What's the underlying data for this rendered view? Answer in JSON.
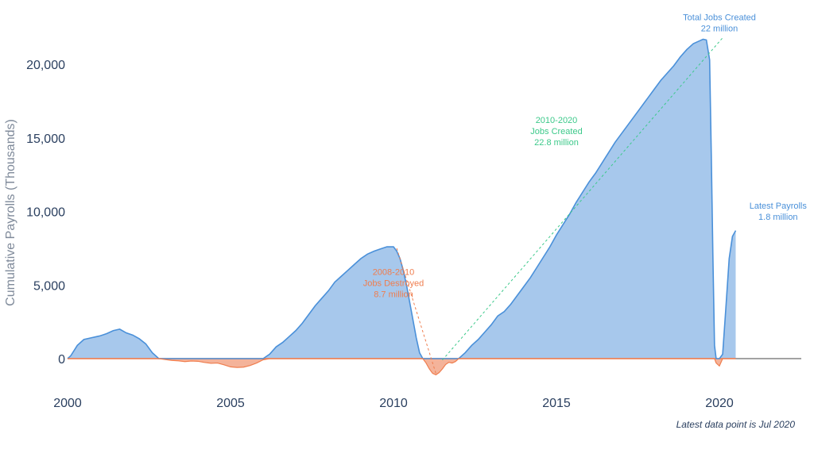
{
  "chart_data": {
    "type": "area",
    "ylabel": "Cumulative Payrolls (Thousands)",
    "xlim": [
      2000,
      2022.5
    ],
    "ylim": [
      -1400,
      22500
    ],
    "x_ticks": [
      "2000",
      "2005",
      "2010",
      "2015",
      "2020"
    ],
    "y_ticks": [
      "0",
      "5,000",
      "10,000",
      "15,000",
      "20,000"
    ],
    "y_tick_values": [
      0,
      5000,
      10000,
      15000,
      20000
    ],
    "x_tick_values": [
      2000,
      2005,
      2010,
      2015,
      2020
    ],
    "colors": {
      "positive_fill": "#a7c8ec",
      "positive_line": "#4a90d9",
      "negative_fill": "#f4b39a",
      "negative_line": "#ef7d4e",
      "green_annotation": "#3cc98a",
      "zero_line": "#444444"
    },
    "series": [
      {
        "points": [
          [
            2000.0,
            0
          ],
          [
            2000.1,
            200
          ],
          [
            2000.3,
            900
          ],
          [
            2000.5,
            1300
          ],
          [
            2000.7,
            1400
          ],
          [
            2000.9,
            1500
          ],
          [
            2001.0,
            1550
          ],
          [
            2001.2,
            1700
          ],
          [
            2001.4,
            1900
          ],
          [
            2001.6,
            2000
          ],
          [
            2001.8,
            1750
          ],
          [
            2002.0,
            1600
          ],
          [
            2002.2,
            1350
          ],
          [
            2002.4,
            1000
          ],
          [
            2002.6,
            400
          ],
          [
            2002.8,
            0
          ],
          [
            2003.0,
            -60
          ],
          [
            2003.2,
            -120
          ],
          [
            2003.4,
            -150
          ],
          [
            2003.6,
            -200
          ],
          [
            2003.8,
            -160
          ],
          [
            2004.0,
            -180
          ],
          [
            2004.2,
            -260
          ],
          [
            2004.4,
            -320
          ],
          [
            2004.6,
            -300
          ],
          [
            2004.8,
            -420
          ],
          [
            2005.0,
            -560
          ],
          [
            2005.2,
            -600
          ],
          [
            2005.4,
            -580
          ],
          [
            2005.6,
            -470
          ],
          [
            2005.8,
            -300
          ],
          [
            2006.0,
            -80
          ],
          [
            2006.2,
            300
          ],
          [
            2006.4,
            800
          ],
          [
            2006.6,
            1100
          ],
          [
            2006.8,
            1500
          ],
          [
            2007.0,
            1900
          ],
          [
            2007.2,
            2400
          ],
          [
            2007.4,
            3000
          ],
          [
            2007.6,
            3600
          ],
          [
            2007.8,
            4100
          ],
          [
            2008.0,
            4600
          ],
          [
            2008.2,
            5200
          ],
          [
            2008.4,
            5600
          ],
          [
            2008.6,
            6000
          ],
          [
            2008.8,
            6400
          ],
          [
            2009.0,
            6800
          ],
          [
            2009.2,
            7100
          ],
          [
            2009.4,
            7300
          ],
          [
            2009.6,
            7450
          ],
          [
            2009.8,
            7600
          ],
          [
            2010.0,
            7600
          ],
          [
            2010.1,
            7300
          ],
          [
            2010.2,
            6800
          ],
          [
            2010.3,
            6000
          ],
          [
            2010.4,
            5000
          ],
          [
            2010.5,
            3800
          ],
          [
            2010.6,
            2600
          ],
          [
            2010.7,
            1400
          ],
          [
            2010.8,
            400
          ],
          [
            2010.9,
            0
          ],
          [
            2011.0,
            -300
          ],
          [
            2011.1,
            -700
          ],
          [
            2011.2,
            -1000
          ],
          [
            2011.3,
            -1100
          ],
          [
            2011.4,
            -950
          ],
          [
            2011.5,
            -700
          ],
          [
            2011.6,
            -400
          ],
          [
            2011.7,
            -250
          ],
          [
            2011.8,
            -300
          ],
          [
            2011.9,
            -200
          ],
          [
            2012.0,
            0
          ],
          [
            2012.2,
            400
          ],
          [
            2012.4,
            900
          ],
          [
            2012.6,
            1300
          ],
          [
            2012.8,
            1800
          ],
          [
            2013.0,
            2300
          ],
          [
            2013.2,
            2900
          ],
          [
            2013.4,
            3200
          ],
          [
            2013.6,
            3700
          ],
          [
            2013.8,
            4300
          ],
          [
            2014.0,
            4900
          ],
          [
            2014.2,
            5500
          ],
          [
            2014.4,
            6200
          ],
          [
            2014.6,
            6900
          ],
          [
            2014.8,
            7600
          ],
          [
            2015.0,
            8400
          ],
          [
            2015.2,
            9100
          ],
          [
            2015.4,
            9800
          ],
          [
            2015.6,
            10600
          ],
          [
            2015.8,
            11300
          ],
          [
            2016.0,
            12000
          ],
          [
            2016.2,
            12600
          ],
          [
            2016.4,
            13300
          ],
          [
            2016.6,
            14000
          ],
          [
            2016.8,
            14700
          ],
          [
            2017.0,
            15300
          ],
          [
            2017.2,
            15900
          ],
          [
            2017.4,
            16500
          ],
          [
            2017.6,
            17100
          ],
          [
            2017.8,
            17700
          ],
          [
            2018.0,
            18300
          ],
          [
            2018.2,
            18900
          ],
          [
            2018.4,
            19400
          ],
          [
            2018.6,
            19900
          ],
          [
            2018.8,
            20500
          ],
          [
            2019.0,
            21000
          ],
          [
            2019.2,
            21400
          ],
          [
            2019.4,
            21600
          ],
          [
            2019.5,
            21700
          ],
          [
            2019.6,
            21650
          ],
          [
            2019.7,
            20300
          ],
          [
            2019.75,
            14000
          ],
          [
            2019.8,
            7000
          ],
          [
            2019.85,
            900
          ],
          [
            2019.9,
            -300
          ],
          [
            2020.0,
            -500
          ],
          [
            2020.1,
            300
          ],
          [
            2020.2,
            3500
          ],
          [
            2020.3,
            6800
          ],
          [
            2020.4,
            8300
          ],
          [
            2020.5,
            8700
          ]
        ]
      }
    ],
    "annotations": [
      {
        "id": "total",
        "lines": [
          "Total Jobs Created",
          "22 million"
        ],
        "x": 2020.0,
        "y": 23000,
        "color": "#4a90d9",
        "anchor": "middle"
      },
      {
        "id": "decade",
        "lines": [
          "2010-2020",
          "Jobs Created",
          "22.8 million"
        ],
        "x": 2015.0,
        "y": 16000,
        "color": "#3cc98a",
        "anchor": "middle"
      },
      {
        "id": "destroyed",
        "lines": [
          "2008-2010",
          "Jobs Destroyed",
          "8.7 million"
        ],
        "x": 2010.0,
        "y": 5700,
        "color": "#ef7d4e",
        "anchor": "middle"
      },
      {
        "id": "latest",
        "lines": [
          "Latest Payrolls",
          "1.8 million"
        ],
        "x": 2021.8,
        "y": 10200,
        "color": "#4a90d9",
        "anchor": "middle"
      }
    ],
    "guide_lines": [
      {
        "from": [
          2011.5,
          -100
        ],
        "to": [
          2020.1,
          21800
        ],
        "color": "#3cc98a"
      },
      {
        "from": [
          2010.1,
          7500
        ],
        "to": [
          2011.3,
          -1000
        ],
        "color": "#ef7d4e"
      }
    ],
    "note": "Latest data point is Jul 2020"
  }
}
